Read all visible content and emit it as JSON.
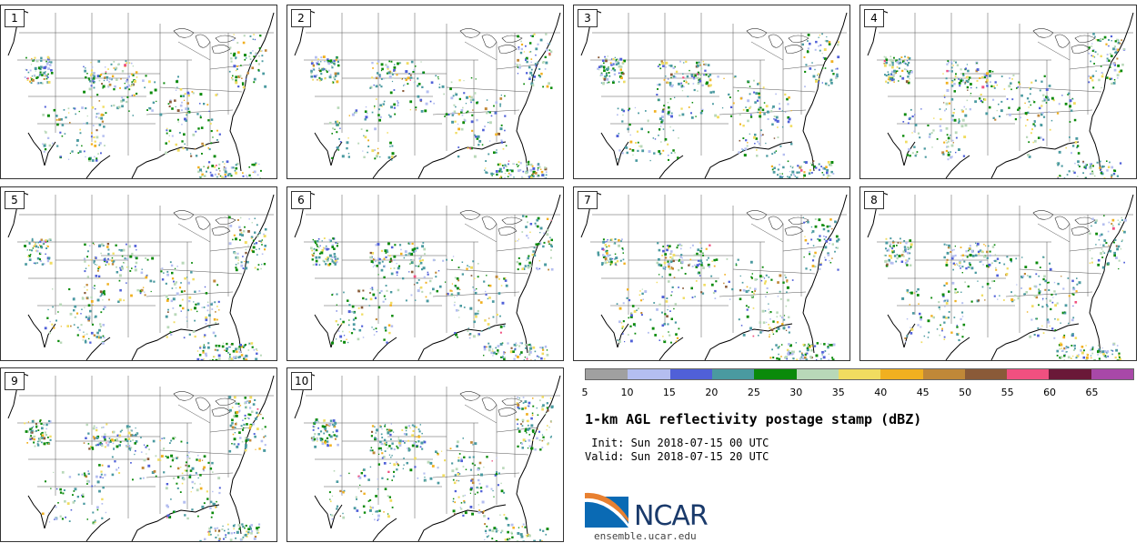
{
  "panels": [
    {
      "label": "1"
    },
    {
      "label": "2"
    },
    {
      "label": "3"
    },
    {
      "label": "4"
    },
    {
      "label": "5"
    },
    {
      "label": "6"
    },
    {
      "label": "7"
    },
    {
      "label": "8"
    },
    {
      "label": "9"
    },
    {
      "label": "10"
    }
  ],
  "colorbar": {
    "colors": [
      "#a0a0a0",
      "#b4bef0",
      "#5060d8",
      "#4a9aa0",
      "#0a8a0a",
      "#b8d8b8",
      "#f0dc60",
      "#f0b020",
      "#c08838",
      "#8a5a38",
      "#f05080",
      "#6a1838",
      "#a848a8"
    ],
    "ticks": [
      "5",
      "10",
      "15",
      "20",
      "25",
      "30",
      "35",
      "40",
      "45",
      "50",
      "55",
      "60",
      "65"
    ]
  },
  "title": "1-km AGL reflectivity postage stamp (dBZ)",
  "init": " Init: Sun 2018-07-15 00 UTC",
  "valid": "Valid: Sun 2018-07-15 20 UTC",
  "logo": {
    "text": "NCAR",
    "url": "ensemble.ucar.edu"
  }
}
